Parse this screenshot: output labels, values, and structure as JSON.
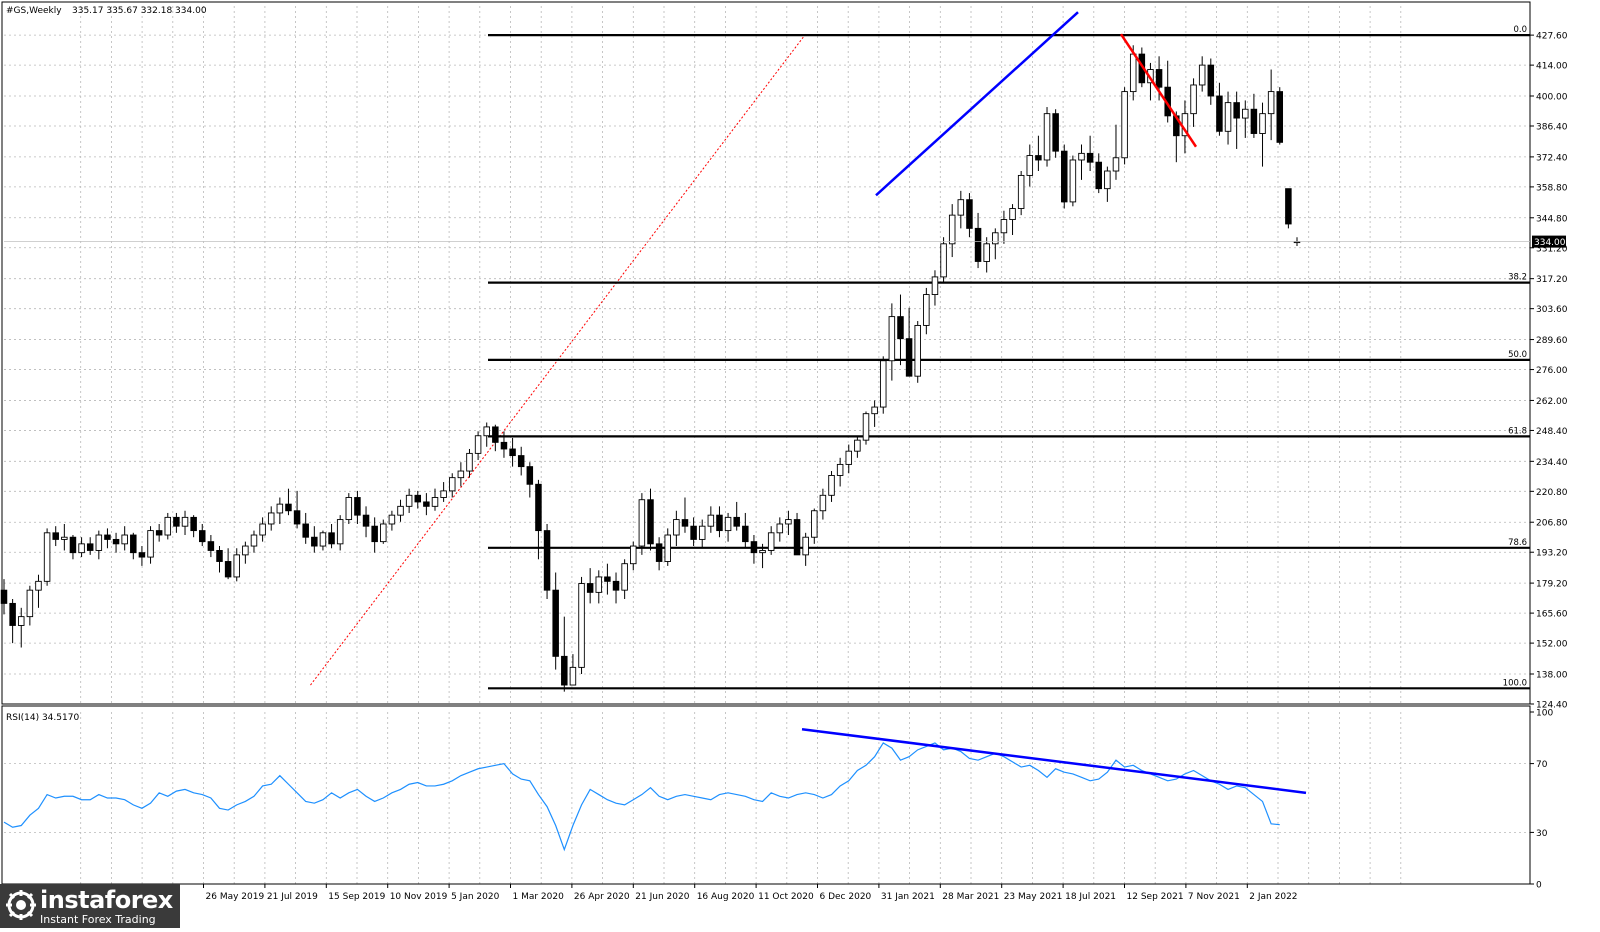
{
  "chart_data": [
    {
      "type": "candlestick",
      "symbol": "#GS,Weekly",
      "ohlc_header": "335.17 335.67 332.18 334.00",
      "current_price": "334.00",
      "ylim": [
        124.4,
        434
      ],
      "y_ticks": [
        "427.60",
        "414.00",
        "400.00",
        "386.40",
        "372.40",
        "358.80",
        "344.80",
        "331.20",
        "317.20",
        "303.60",
        "289.60",
        "276.00",
        "262.00",
        "248.40",
        "234.40",
        "220.80",
        "206.80",
        "193.20",
        "179.20",
        "165.60",
        "152.00",
        "138.00",
        "124.40"
      ],
      "x_ticks": [
        "26 May 2019",
        "21 Jul 2019",
        "15 Sep 2019",
        "10 Nov 2019",
        "5 Jan 2020",
        "1 Mar 2020",
        "26 Apr 2020",
        "21 Jun 2020",
        "16 Aug 2020",
        "11 Oct 2020",
        "6 Dec 2020",
        "31 Jan 2021",
        "28 Mar 2021",
        "23 May 2021",
        "18 Jul 2021",
        "12 Sep 2021",
        "7 Nov 2021",
        "2 Jan 2022"
      ],
      "fib_levels": [
        {
          "label": "0.0",
          "value": 427.6
        },
        {
          "label": "38.2",
          "value": 315.4
        },
        {
          "label": "50.0",
          "value": 280.4
        },
        {
          "label": "61.8",
          "value": 245.7
        },
        {
          "label": "78.6",
          "value": 195.2
        },
        {
          "label": "100.0",
          "value": 131.5
        }
      ],
      "trendlines": [
        {
          "color": "#0000ff",
          "from": [
            "31 Jan 2021",
            355
          ],
          "to": [
            "18 Jul 2021",
            438
          ]
        },
        {
          "color": "#ff0000",
          "from": [
            "12 Sep 2021",
            428
          ],
          "to": [
            "2 Jan 2022",
            377
          ]
        },
        {
          "color": "#ff0000",
          "style": "dotted",
          "from": [
            "1 Mar 2020",
            133
          ],
          "to": [
            "6 Dec 2020",
            428
          ]
        }
      ],
      "candles": [
        [
          176,
          181,
          165,
          170
        ],
        [
          170,
          172,
          152,
          160
        ],
        [
          160,
          168,
          150,
          164
        ],
        [
          164,
          178,
          160,
          176
        ],
        [
          176,
          183,
          168,
          180
        ],
        [
          180,
          204,
          178,
          202
        ],
        [
          202,
          205,
          196,
          199
        ],
        [
          199,
          206,
          194,
          200
        ],
        [
          200,
          201,
          190,
          193
        ],
        [
          193,
          200,
          191,
          197
        ],
        [
          197,
          200,
          192,
          194
        ],
        [
          194,
          203,
          190,
          201
        ],
        [
          201,
          204,
          195,
          199
        ],
        [
          199,
          202,
          193,
          197
        ],
        [
          197,
          205,
          194,
          201
        ],
        [
          201,
          202,
          190,
          193
        ],
        [
          193,
          196,
          187,
          191
        ],
        [
          191,
          205,
          188,
          203
        ],
        [
          203,
          206,
          198,
          201
        ],
        [
          201,
          211,
          199,
          209
        ],
        [
          209,
          211,
          202,
          205
        ],
        [
          205,
          212,
          201,
          209
        ],
        [
          209,
          210,
          200,
          203
        ],
        [
          203,
          206,
          196,
          198
        ],
        [
          198,
          201,
          191,
          194
        ],
        [
          194,
          196,
          184,
          189
        ],
        [
          189,
          195,
          181,
          182
        ],
        [
          182,
          195,
          180,
          192
        ],
        [
          192,
          198,
          188,
          196
        ],
        [
          196,
          203,
          193,
          201
        ],
        [
          201,
          209,
          198,
          206
        ],
        [
          206,
          214,
          203,
          211
        ],
        [
          211,
          218,
          206,
          215
        ],
        [
          215,
          222,
          210,
          212
        ],
        [
          212,
          221,
          204,
          206
        ],
        [
          206,
          211,
          197,
          200
        ],
        [
          200,
          205,
          193,
          196
        ],
        [
          196,
          203,
          194,
          202
        ],
        [
          202,
          206,
          195,
          197
        ],
        [
          197,
          210,
          194,
          208
        ],
        [
          208,
          220,
          206,
          218
        ],
        [
          218,
          221,
          206,
          210
        ],
        [
          210,
          214,
          200,
          205
        ],
        [
          205,
          209,
          193,
          198
        ],
        [
          198,
          208,
          197,
          206
        ],
        [
          206,
          212,
          203,
          210
        ],
        [
          210,
          217,
          207,
          214
        ],
        [
          214,
          222,
          211,
          219
        ],
        [
          219,
          221,
          213,
          216
        ],
        [
          216,
          220,
          210,
          214
        ],
        [
          214,
          222,
          212,
          218
        ],
        [
          218,
          225,
          216,
          221
        ],
        [
          221,
          229,
          218,
          227
        ],
        [
          227,
          234,
          223,
          230
        ],
        [
          230,
          240,
          227,
          238
        ],
        [
          238,
          248,
          235,
          246
        ],
        [
          246,
          252,
          241,
          250
        ],
        [
          250,
          251,
          239,
          243
        ],
        [
          243,
          248,
          236,
          240
        ],
        [
          240,
          245,
          232,
          237
        ],
        [
          237,
          241,
          228,
          232
        ],
        [
          232,
          234,
          218,
          224
        ],
        [
          224,
          226,
          190,
          203
        ],
        [
          203,
          206,
          172,
          176
        ],
        [
          176,
          184,
          140,
          146
        ],
        [
          146,
          164,
          130,
          133
        ],
        [
          133,
          147,
          133,
          141
        ],
        [
          141,
          182,
          138,
          179
        ],
        [
          179,
          186,
          170,
          175
        ],
        [
          175,
          185,
          170,
          182
        ],
        [
          182,
          188,
          174,
          180
        ],
        [
          180,
          184,
          170,
          176
        ],
        [
          176,
          190,
          172,
          188
        ],
        [
          188,
          198,
          185,
          196
        ],
        [
          196,
          220,
          192,
          217
        ],
        [
          217,
          222,
          194,
          197
        ],
        [
          197,
          200,
          185,
          189
        ],
        [
          189,
          204,
          187,
          201
        ],
        [
          201,
          212,
          196,
          208
        ],
        [
          208,
          218,
          202,
          205
        ],
        [
          205,
          209,
          196,
          199
        ],
        [
          199,
          208,
          195,
          205
        ],
        [
          205,
          214,
          202,
          210
        ],
        [
          210,
          214,
          200,
          203
        ],
        [
          203,
          211,
          198,
          209
        ],
        [
          209,
          216,
          203,
          205
        ],
        [
          205,
          211,
          195,
          198
        ],
        [
          198,
          201,
          188,
          193
        ],
        [
          193,
          197,
          186,
          194
        ],
        [
          194,
          205,
          192,
          202
        ],
        [
          202,
          209,
          198,
          206
        ],
        [
          206,
          212,
          201,
          208
        ],
        [
          208,
          211,
          192,
          192
        ],
        [
          192,
          202,
          187,
          200
        ],
        [
          200,
          213,
          197,
          212
        ],
        [
          212,
          222,
          208,
          219
        ],
        [
          219,
          230,
          216,
          228
        ],
        [
          228,
          236,
          223,
          233
        ],
        [
          233,
          242,
          229,
          239
        ],
        [
          239,
          246,
          236,
          244
        ],
        [
          244,
          257,
          242,
          256
        ],
        [
          256,
          262,
          250,
          259
        ],
        [
          259,
          282,
          256,
          280
        ],
        [
          280,
          306,
          271,
          300
        ],
        [
          300,
          310,
          278,
          290
        ],
        [
          290,
          304,
          273,
          273
        ],
        [
          273,
          298,
          270,
          296
        ],
        [
          296,
          313,
          292,
          310
        ],
        [
          310,
          321,
          305,
          318
        ],
        [
          318,
          336,
          315,
          333
        ],
        [
          333,
          351,
          327,
          346
        ],
        [
          346,
          357,
          340,
          353
        ],
        [
          353,
          356,
          336,
          340
        ],
        [
          340,
          347,
          322,
          325
        ],
        [
          325,
          336,
          320,
          333
        ],
        [
          333,
          340,
          326,
          338
        ],
        [
          338,
          348,
          333,
          344
        ],
        [
          344,
          351,
          337,
          349
        ],
        [
          349,
          366,
          346,
          364
        ],
        [
          364,
          378,
          359,
          373
        ],
        [
          373,
          382,
          366,
          371
        ],
        [
          371,
          395,
          368,
          392
        ],
        [
          392,
          394,
          372,
          375
        ],
        [
          375,
          378,
          349,
          352
        ],
        [
          352,
          373,
          350,
          371
        ],
        [
          371,
          378,
          362,
          374
        ],
        [
          374,
          382,
          366,
          370
        ],
        [
          370,
          374,
          356,
          358
        ],
        [
          358,
          368,
          352,
          366
        ],
        [
          366,
          387,
          362,
          372
        ],
        [
          372,
          404,
          369,
          402
        ],
        [
          402,
          423,
          398,
          419
        ],
        [
          419,
          422,
          404,
          406
        ],
        [
          406,
          415,
          398,
          412
        ],
        [
          412,
          418,
          398,
          404
        ],
        [
          404,
          416,
          388,
          391
        ],
        [
          391,
          393,
          370,
          382
        ],
        [
          382,
          398,
          374,
          392
        ],
        [
          392,
          408,
          386,
          405
        ],
        [
          405,
          418,
          402,
          414
        ],
        [
          414,
          417,
          396,
          400
        ],
        [
          400,
          406,
          382,
          384
        ],
        [
          384,
          402,
          378,
          397
        ],
        [
          397,
          402,
          376,
          390
        ],
        [
          390,
          398,
          381,
          394
        ],
        [
          394,
          401,
          381,
          383
        ],
        [
          383,
          397,
          368,
          392
        ],
        [
          392,
          412,
          380,
          402
        ],
        [
          402,
          404,
          378,
          379
        ],
        [
          358,
          358,
          340,
          342
        ],
        [
          334,
          336,
          332,
          334
        ]
      ],
      "rsi": {
        "label": "RSI(14) 34.5170",
        "period": 14,
        "last": 34.517,
        "ylim": [
          0,
          100
        ],
        "y_ticks": [
          "100",
          "70",
          "30",
          "0"
        ],
        "values": [
          36,
          33,
          34,
          40,
          44,
          52,
          50,
          51,
          51,
          49,
          49,
          52,
          50,
          50,
          49,
          46,
          44,
          47,
          53,
          51,
          54,
          55,
          53,
          52,
          50,
          44,
          43,
          46,
          48,
          51,
          57,
          58,
          63,
          58,
          53,
          48,
          47,
          49,
          53,
          50,
          53,
          55,
          51,
          48,
          50,
          53,
          55,
          58,
          59,
          57,
          57,
          58,
          60,
          63,
          65,
          67,
          68,
          69,
          70,
          64,
          61,
          60,
          52,
          45,
          34,
          20,
          34,
          46,
          55,
          52,
          49,
          47,
          46,
          49,
          52,
          56,
          51,
          49,
          51,
          52,
          51,
          50,
          49,
          52,
          53,
          52,
          51,
          49,
          48,
          53,
          51,
          50,
          52,
          53,
          52,
          50,
          52,
          57,
          60,
          66,
          69,
          74,
          82,
          79,
          72,
          74,
          78,
          80,
          82,
          78,
          79,
          77,
          73,
          72,
          74,
          76,
          74,
          71,
          68,
          69,
          66,
          62,
          67,
          65,
          64,
          62,
          60,
          61,
          65,
          72,
          68,
          69,
          66,
          64,
          62,
          60,
          61,
          64,
          66,
          63,
          60,
          58,
          55,
          57,
          56,
          52,
          48,
          35,
          34.5
        ]
      },
      "rsi_trendline": {
        "color": "#0000ff",
        "from": [
          "6 Dec 2020",
          90
        ],
        "to": [
          "after 2 Jan 2022",
          53
        ]
      }
    }
  ],
  "logo": {
    "name": "instaforex",
    "tagline": "Instant Forex Trading"
  }
}
